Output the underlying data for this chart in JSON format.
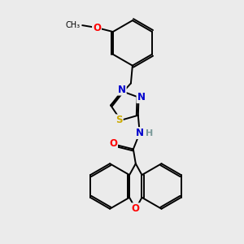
{
  "bg_color": "#ebebeb",
  "bond_color": "#000000",
  "atom_colors": {
    "O": "#ff0000",
    "N": "#0000cd",
    "S": "#ccaa00",
    "H": "#7a9999",
    "C": "#000000"
  },
  "font_size_atom": 8.5,
  "fig_size": [
    3.0,
    3.0
  ],
  "dpi": 100
}
